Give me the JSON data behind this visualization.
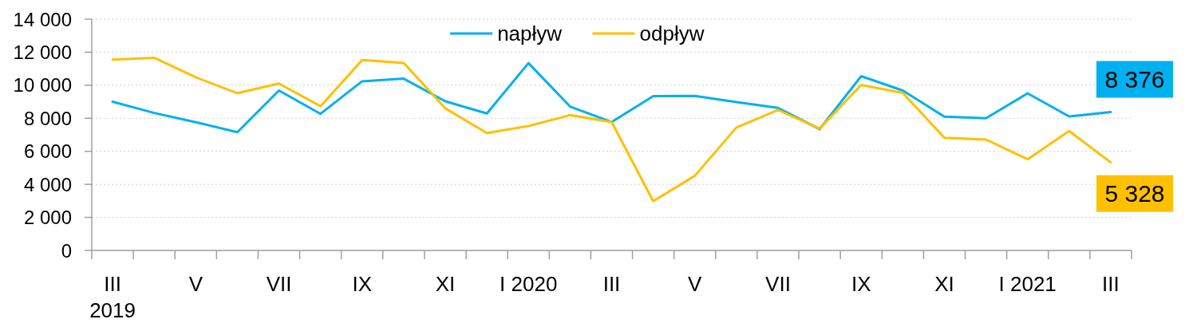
{
  "chart_data": {
    "type": "line",
    "categories": [
      "III\n2019",
      null,
      "V",
      null,
      "VII",
      null,
      "IX",
      null,
      "XI",
      null,
      "I 2020",
      null,
      "III",
      null,
      "V",
      null,
      "VII",
      null,
      "IX",
      null,
      "XI",
      null,
      "I 2021",
      null,
      "III"
    ],
    "series": [
      {
        "name": "napływ",
        "color": "#00b0f0",
        "values": [
          9000,
          8320,
          7760,
          7160,
          9680,
          8270,
          10240,
          10400,
          9030,
          8290,
          11340,
          8710,
          7770,
          9340,
          9350,
          8980,
          8630,
          7340,
          10550,
          9680,
          8100,
          8000,
          9510,
          8110,
          8376
        ],
        "value_labels": [
          null,
          null,
          null,
          null,
          null,
          null,
          null,
          null,
          null,
          null,
          null,
          null,
          null,
          null,
          null,
          null,
          null,
          null,
          null,
          null,
          null,
          null,
          null,
          null,
          "8 376"
        ]
      },
      {
        "name": "odpływ",
        "color": "#ffc000",
        "values": [
          11550,
          11660,
          10480,
          9520,
          10100,
          8730,
          11520,
          11350,
          8600,
          7110,
          7530,
          8190,
          7770,
          2980,
          4520,
          7440,
          8500,
          7380,
          10020,
          9530,
          6820,
          6710,
          5520,
          7230,
          5328
        ],
        "value_labels": [
          null,
          null,
          null,
          null,
          null,
          null,
          null,
          null,
          null,
          null,
          null,
          null,
          null,
          null,
          null,
          null,
          null,
          null,
          null,
          null,
          null,
          null,
          null,
          null,
          "5 328"
        ]
      }
    ],
    "ylim": [
      0,
      14000
    ],
    "yticks": [
      0,
      {
        "value": 2000,
        "label": "2 000"
      },
      {
        "value": 4000,
        "label": "4 000"
      },
      {
        "value": 6000,
        "label": "6 000"
      },
      {
        "value": 8000,
        "label": "8 000"
      },
      {
        "value": 10000,
        "label": "10 000"
      },
      {
        "value": 12000,
        "label": "12 000"
      },
      {
        "value": 14000,
        "label": "14 000"
      }
    ],
    "grid": "y",
    "legend": "top"
  }
}
